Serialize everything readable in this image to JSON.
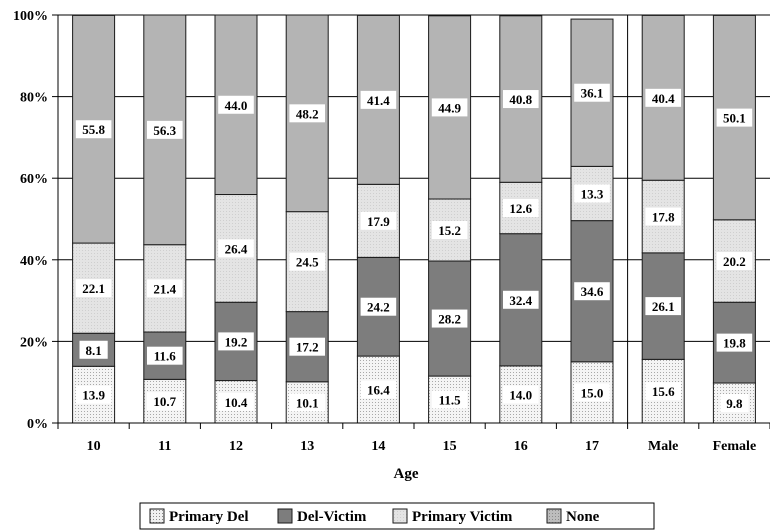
{
  "chart_data": {
    "type": "bar",
    "stacked": true,
    "percent_stacked": true,
    "xlabel": "Age",
    "ylabel": "",
    "ylim": [
      0,
      100
    ],
    "yticks": [
      "0%",
      "20%",
      "40%",
      "60%",
      "80%",
      "100%"
    ],
    "grid": true,
    "legend_position": "bottom",
    "categories": [
      "10",
      "11",
      "12",
      "13",
      "14",
      "15",
      "16",
      "17",
      "Male",
      "Female"
    ],
    "series": [
      {
        "name": "Primary Del",
        "color": "#ececec",
        "pattern": "dotted",
        "values": [
          13.9,
          10.7,
          10.4,
          10.1,
          16.4,
          11.5,
          14.0,
          15.0,
          15.6,
          9.8
        ],
        "labels": [
          "13.9",
          "10.7",
          "10.4",
          "10.1",
          "16.4",
          "11.5",
          "14.0",
          "15.0",
          "15.6",
          "9.8"
        ]
      },
      {
        "name": "Del-Victim",
        "color": "#7d7d7d",
        "pattern": "solid",
        "values": [
          8.1,
          11.6,
          19.2,
          17.2,
          24.2,
          28.2,
          32.4,
          34.6,
          26.1,
          19.8
        ],
        "labels": [
          "8.1",
          "11.6",
          "19.2",
          "17.2",
          "24.2",
          "28.2",
          "32.4",
          "34.6",
          "26.1",
          "19.8"
        ]
      },
      {
        "name": "Primary Victim",
        "color": "#e2e2e2",
        "pattern": "light",
        "values": [
          22.1,
          21.4,
          26.4,
          24.5,
          17.9,
          15.2,
          12.6,
          13.3,
          17.8,
          20.2
        ],
        "labels": [
          "22.1",
          "21.4",
          "26.4",
          "24.5",
          "17.9",
          "15.2",
          "12.6",
          "13.3",
          "17.8",
          "20.2"
        ]
      },
      {
        "name": "None",
        "color": "#b4b4b4",
        "pattern": "solid",
        "values": [
          55.8,
          56.3,
          44.0,
          48.2,
          41.4,
          44.9,
          40.8,
          36.1,
          40.4,
          50.1
        ],
        "labels": [
          "55.8",
          "56.3",
          "44.0",
          "48.2",
          "41.4",
          "44.9",
          "40.8",
          "36.1",
          "40.4",
          "50.1"
        ]
      }
    ],
    "separator_before_category": "Male"
  }
}
